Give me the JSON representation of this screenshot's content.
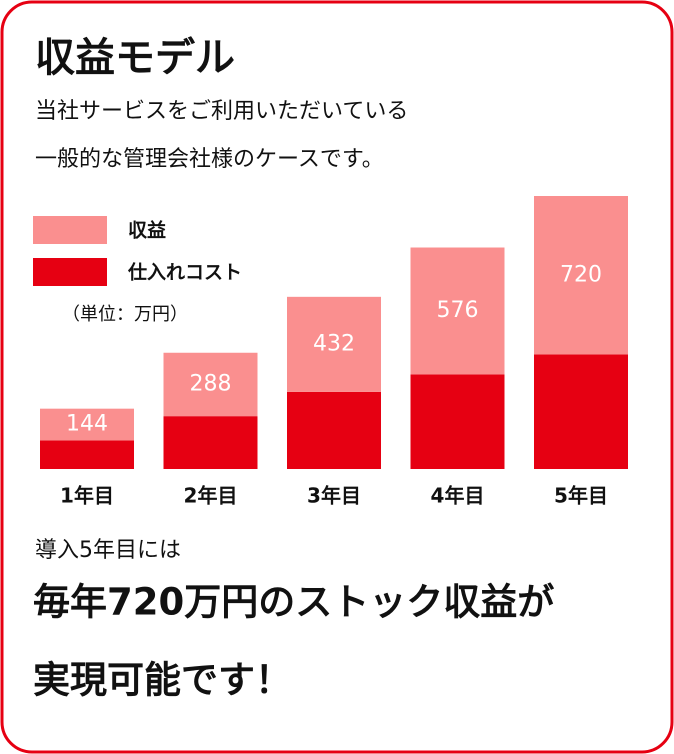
{
  "chart_data": {
    "type": "stacked-bar",
    "title": "収益モデル",
    "description": [
      "当社サービスをご利用いただいている",
      "一般的な管理会社様のケースです。"
    ],
    "unit": "（単位：万円）",
    "categories": [
      "1年目",
      "2年目",
      "3年目",
      "4年目",
      "5年目"
    ],
    "series": [
      {
        "name": "収益",
        "color": "#fa8f8f",
        "values": [
          144,
          288,
          432,
          576,
          720
        ]
      },
      {
        "name": "仕入れコスト",
        "color": "#e60012",
        "values": [
          130,
          240,
          350,
          430,
          520
        ]
      }
    ],
    "note": "導入5年目には",
    "headline": [
      "毎年720万円のストック収益が",
      "実現可能です！"
    ]
  }
}
